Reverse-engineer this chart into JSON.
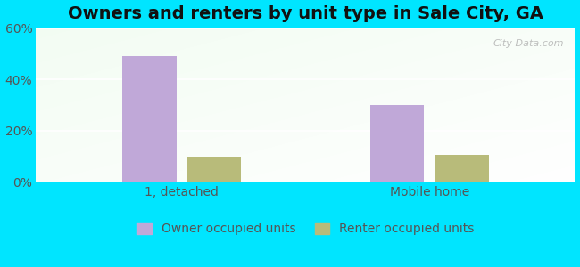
{
  "title": "Owners and renters by unit type in Sale City, GA",
  "categories": [
    "1, detached",
    "Mobile home"
  ],
  "series": [
    {
      "name": "Owner occupied units",
      "values": [
        49.0,
        30.0
      ],
      "color": "#c0a8d8"
    },
    {
      "name": "Renter occupied units",
      "values": [
        10.0,
        10.5
      ],
      "color": "#b8bb7a"
    }
  ],
  "ylim": [
    0,
    60
  ],
  "yticks": [
    0,
    20,
    40,
    60
  ],
  "ytick_labels": [
    "0%",
    "20%",
    "40%",
    "60%"
  ],
  "bar_width": 0.1,
  "outer_background": "#00e5ff",
  "grid_color": "#e8ece0",
  "title_fontsize": 14,
  "legend_fontsize": 10,
  "tick_fontsize": 10,
  "watermark": "City-Data.com"
}
